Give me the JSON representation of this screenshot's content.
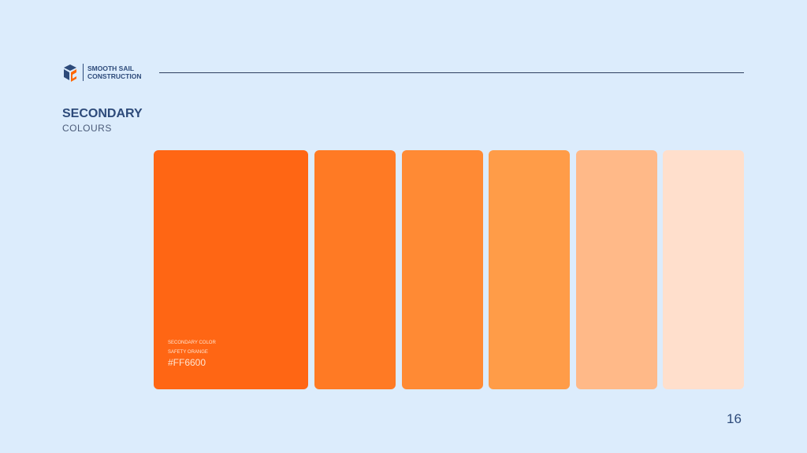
{
  "brand": {
    "name_line1": "SMOOTH SAIL",
    "name_line2": "CONSTRUCTION"
  },
  "heading": {
    "title": "SECONDARY",
    "subtitle": "COLOURS"
  },
  "primary_swatch": {
    "label": "SECONDARY COLOR",
    "name": "SAFETY ORANGE",
    "hex": "#FF6600",
    "color": "#ff6614"
  },
  "tints": [
    "#ff7a24",
    "#ff8a34",
    "#ff9c48",
    "#ffb988",
    "#ffdfcc"
  ],
  "page_number": "16"
}
